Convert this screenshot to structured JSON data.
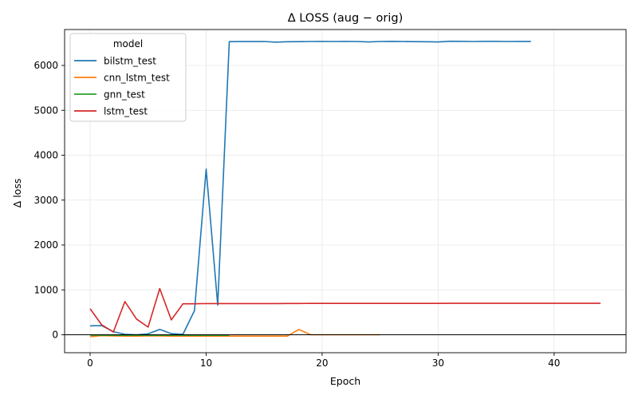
{
  "chart_data": {
    "type": "line",
    "title": "Δ LOSS (aug − orig)",
    "xlabel": "Epoch",
    "ylabel": "Δ loss",
    "xlim": [
      -2.2,
      46.2
    ],
    "ylim": [
      -400,
      6800
    ],
    "xticks": [
      0,
      10,
      20,
      30,
      40
    ],
    "yticks": [
      0,
      1000,
      2000,
      3000,
      4000,
      5000,
      6000
    ],
    "grid": true,
    "zero_line": true,
    "legend": {
      "title": "model",
      "position": "top-left"
    },
    "series": [
      {
        "name": "bilstm_test",
        "color": "#1f77b4",
        "x": [
          0,
          1,
          2,
          3,
          4,
          5,
          6,
          7,
          8,
          9,
          10,
          11,
          12,
          13,
          14,
          15,
          16,
          17,
          18,
          19,
          20,
          21,
          22,
          23,
          24,
          25,
          26,
          27,
          28,
          29,
          30,
          31,
          32,
          33,
          34,
          35,
          36,
          37,
          38
        ],
        "y": [
          200,
          205,
          70,
          10,
          0,
          20,
          120,
          25,
          10,
          540,
          3690,
          660,
          6530,
          6532,
          6531,
          6533,
          6520,
          6528,
          6530,
          6534,
          6535,
          6533,
          6535,
          6534,
          6522,
          6534,
          6536,
          6533,
          6530,
          6528,
          6522,
          6538,
          6537,
          6533,
          6537,
          6536,
          6534,
          6535,
          6535
        ]
      },
      {
        "name": "cnn_lstm_test",
        "color": "#ff7f0e",
        "x": [
          0,
          1,
          2,
          3,
          4,
          5,
          6,
          7,
          8,
          9,
          10,
          11,
          12,
          13,
          14,
          15,
          16,
          17,
          18,
          19,
          20,
          21,
          22,
          23,
          24,
          25
        ],
        "y": [
          -45,
          -20,
          -25,
          -30,
          -30,
          -25,
          -25,
          -30,
          -30,
          -30,
          -30,
          -30,
          -30,
          -30,
          -30,
          -30,
          -30,
          -30,
          120,
          0,
          0,
          0,
          0,
          0,
          0,
          0
        ]
      },
      {
        "name": "gnn_test",
        "color": "#2ca02c",
        "x": [
          0,
          1,
          2,
          3,
          4,
          5,
          6,
          7,
          8,
          9,
          10,
          11,
          12
        ],
        "y": [
          -10,
          -10,
          -12,
          -12,
          -12,
          -12,
          -12,
          -12,
          -12,
          -12,
          -12,
          -12,
          -12
        ]
      },
      {
        "name": "lstm_test",
        "color": "#d62728",
        "x": [
          0,
          1,
          2,
          3,
          4,
          5,
          6,
          7,
          8,
          9,
          10,
          11,
          12,
          13,
          14,
          15,
          16,
          17,
          18,
          19,
          20,
          21,
          22,
          23,
          24,
          25,
          26,
          27,
          28,
          29,
          30,
          31,
          32,
          33,
          34,
          35,
          36,
          37,
          38,
          39,
          40,
          41,
          42,
          43,
          44
        ],
        "y": [
          580,
          220,
          60,
          740,
          350,
          170,
          1030,
          330,
          690,
          690,
          695,
          695,
          695,
          695,
          695,
          696,
          696,
          697,
          697,
          698,
          698,
          698,
          699,
          699,
          699,
          699,
          699,
          699,
          699,
          699,
          699,
          700,
          700,
          700,
          700,
          700,
          700,
          700,
          700,
          700,
          700,
          700,
          700,
          700,
          700
        ]
      }
    ]
  }
}
